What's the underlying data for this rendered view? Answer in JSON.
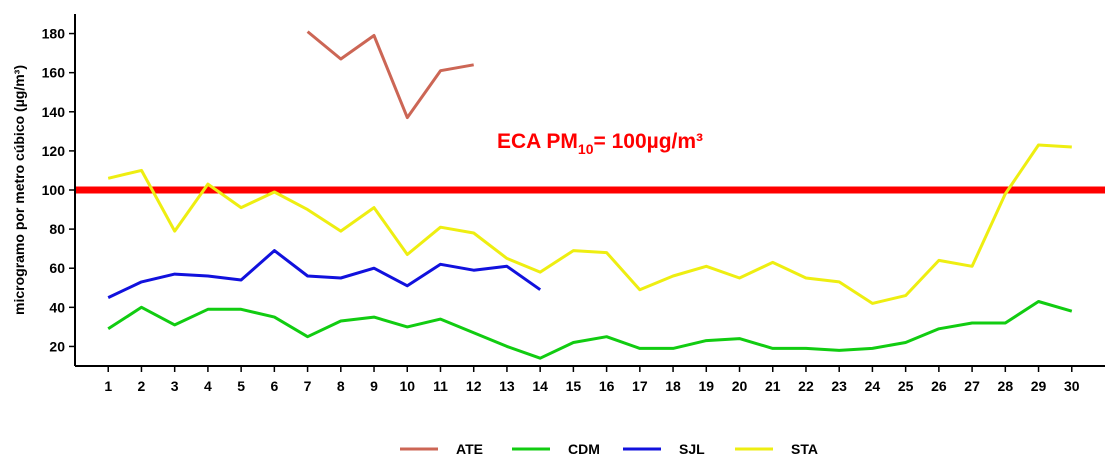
{
  "chart_data": {
    "type": "line",
    "ylabel": "microgramo por metro cúbico (µg/m³)",
    "xlabel": "",
    "x": [
      1,
      2,
      3,
      4,
      5,
      6,
      7,
      8,
      9,
      10,
      11,
      12,
      13,
      14,
      15,
      16,
      17,
      18,
      19,
      20,
      21,
      22,
      23,
      24,
      25,
      26,
      27,
      28,
      29,
      30
    ],
    "yticks": [
      20,
      40,
      60,
      80,
      100,
      120,
      140,
      160,
      180
    ],
    "ylim": [
      10,
      190
    ],
    "xlim": [
      0,
      31
    ],
    "reference_line": {
      "value": 100,
      "color": "#ff0000",
      "label_prefix": "ECA PM",
      "label_sub": "10",
      "label_suffix": "= 100µg/m³"
    },
    "legend_position": "bottom-center",
    "series": [
      {
        "name": "ATE",
        "color": "#cc6655",
        "values": [
          null,
          null,
          null,
          null,
          null,
          null,
          181,
          167,
          179,
          137,
          161,
          164,
          null,
          null,
          null,
          null,
          null,
          null,
          null,
          null,
          null,
          null,
          null,
          null,
          null,
          null,
          null,
          null,
          null,
          null
        ]
      },
      {
        "name": "CDM",
        "color": "#11cc11",
        "values": [
          29,
          40,
          31,
          39,
          39,
          35,
          25,
          33,
          35,
          30,
          34,
          27,
          20,
          14,
          22,
          25,
          19,
          19,
          23,
          24,
          19,
          19,
          18,
          19,
          22,
          29,
          32,
          32,
          43,
          38
        ]
      },
      {
        "name": "SJL",
        "color": "#1111dd",
        "values": [
          45,
          53,
          57,
          56,
          54,
          69,
          56,
          55,
          60,
          51,
          62,
          59,
          61,
          49,
          null,
          null,
          null,
          null,
          null,
          null,
          null,
          null,
          null,
          null,
          null,
          null,
          null,
          null,
          null,
          null
        ]
      },
      {
        "name": "STA",
        "color": "#eeee11",
        "values": [
          106,
          110,
          79,
          103,
          91,
          99,
          90,
          79,
          91,
          67,
          81,
          78,
          65,
          58,
          69,
          68,
          49,
          56,
          61,
          55,
          63,
          55,
          53,
          42,
          46,
          64,
          61,
          98,
          123,
          122
        ]
      }
    ]
  }
}
